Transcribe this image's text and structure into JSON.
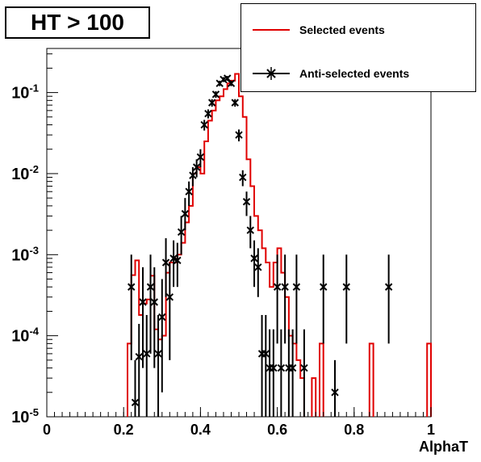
{
  "title": "HT > 100",
  "legend": {
    "selected": "Selected events",
    "anti": "Anti-selected events"
  },
  "colors": {
    "selected": "#e00000",
    "anti": "#000000"
  },
  "chart_data": {
    "type": "line",
    "title": "HT > 100",
    "xlabel": "AlphaT",
    "ylabel": "",
    "xlim": [
      0,
      1
    ],
    "ylim": [
      1e-05,
      0.35
    ],
    "yscale": "log",
    "x_ticks": [
      "0",
      "0.2",
      "0.4",
      "0.6",
      "0.8",
      "1"
    ],
    "y_ticks": [
      {
        "base": "10",
        "exp": "-5"
      },
      {
        "base": "10",
        "exp": "-4"
      },
      {
        "base": "10",
        "exp": "-3"
      },
      {
        "base": "10",
        "exp": "-2"
      },
      {
        "base": "10",
        "exp": "-1"
      }
    ],
    "series": [
      {
        "name": "Selected events",
        "style": "step",
        "bin_width": 0.01,
        "bins": [
          [
            0.21,
            8e-05
          ],
          [
            0.22,
            0.00056
          ],
          [
            0.23,
            0.00085
          ],
          [
            0.24,
            0.00018
          ],
          [
            0.25,
            0.00025
          ],
          [
            0.26,
            0.00028
          ],
          [
            0.27,
            0.00055
          ],
          [
            0.28,
            0.00012
          ],
          [
            0.29,
            9e-05
          ],
          [
            0.3,
            0.0001
          ],
          [
            0.31,
            0.0006
          ],
          [
            0.32,
            0.0008
          ],
          [
            0.33,
            0.0008
          ],
          [
            0.34,
            0.001
          ],
          [
            0.35,
            0.0014
          ],
          [
            0.36,
            0.0025
          ],
          [
            0.37,
            0.004
          ],
          [
            0.38,
            0.01
          ],
          [
            0.39,
            0.012
          ],
          [
            0.4,
            0.01
          ],
          [
            0.41,
            0.025
          ],
          [
            0.42,
            0.045
          ],
          [
            0.43,
            0.06
          ],
          [
            0.44,
            0.08
          ],
          [
            0.45,
            0.09
          ],
          [
            0.46,
            0.11
          ],
          [
            0.47,
            0.13
          ],
          [
            0.48,
            0.14
          ],
          [
            0.49,
            0.17
          ],
          [
            0.5,
            0.09
          ],
          [
            0.51,
            0.05
          ],
          [
            0.52,
            0.015
          ],
          [
            0.53,
            0.007
          ],
          [
            0.54,
            0.003
          ],
          [
            0.55,
            0.002
          ],
          [
            0.56,
            0.0012
          ],
          [
            0.57,
            0.0008
          ],
          [
            0.58,
            0.0004
          ],
          [
            0.59,
            0.0008
          ],
          [
            0.6,
            0.0012
          ],
          [
            0.61,
            0.0006
          ],
          [
            0.62,
            0.0003
          ],
          [
            0.63,
            0.0001
          ],
          [
            0.64,
            8e-05
          ],
          [
            0.65,
            5e-05
          ],
          [
            0.66,
            3e-05
          ],
          [
            0.69,
            3e-05
          ],
          [
            0.71,
            8e-05
          ],
          [
            0.84,
            8e-05
          ],
          [
            0.99,
            8e-05
          ]
        ]
      },
      {
        "name": "Anti-selected events",
        "style": "points",
        "points": [
          [
            0.22,
            0.0004,
            0.001,
            5e-05
          ],
          [
            0.23,
            1.5e-05,
            5e-05,
            1e-05
          ],
          [
            0.24,
            5.5e-05,
            0.00014,
            1e-05
          ],
          [
            0.25,
            0.00026,
            0.0007,
            4e-05
          ],
          [
            0.26,
            6e-05,
            0.00018,
            1e-05
          ],
          [
            0.27,
            0.0004,
            0.001,
            6e-05
          ],
          [
            0.28,
            0.00026,
            0.0007,
            4e-05
          ],
          [
            0.29,
            6e-05,
            0.00018,
            1e-05
          ],
          [
            0.3,
            0.00017,
            0.0005,
            2e-05
          ],
          [
            0.31,
            0.0008,
            0.0016,
            0.0003
          ],
          [
            0.32,
            0.0003,
            0.0008,
            5e-05
          ],
          [
            0.33,
            0.0009,
            0.0015,
            0.0004
          ],
          [
            0.34,
            0.00085,
            0.0014,
            0.0004
          ],
          [
            0.35,
            0.0019,
            0.003,
            0.001
          ],
          [
            0.36,
            0.0032,
            0.005,
            0.002
          ],
          [
            0.37,
            0.006,
            0.008,
            0.004
          ],
          [
            0.38,
            0.0095,
            0.012,
            0.007
          ],
          [
            0.39,
            0.012,
            0.015,
            0.009
          ],
          [
            0.4,
            0.016,
            0.02,
            0.012
          ],
          [
            0.41,
            0.04,
            0.046,
            0.034
          ],
          [
            0.42,
            0.055,
            0.062,
            0.048
          ],
          [
            0.43,
            0.075,
            0.083,
            0.067
          ],
          [
            0.44,
            0.095,
            0.104,
            0.086
          ],
          [
            0.45,
            0.13,
            0.14,
            0.12
          ],
          [
            0.46,
            0.145,
            0.155,
            0.135
          ],
          [
            0.47,
            0.15,
            0.16,
            0.14
          ],
          [
            0.48,
            0.13,
            0.14,
            0.12
          ],
          [
            0.49,
            0.075,
            0.083,
            0.067
          ],
          [
            0.5,
            0.03,
            0.035,
            0.025
          ],
          [
            0.51,
            0.009,
            0.011,
            0.007
          ],
          [
            0.52,
            0.0045,
            0.006,
            0.003
          ],
          [
            0.53,
            0.002,
            0.003,
            0.0012
          ],
          [
            0.54,
            0.0009,
            0.0015,
            0.0004
          ],
          [
            0.55,
            0.0007,
            0.0012,
            0.0003
          ],
          [
            0.56,
            6e-05,
            0.00018,
            1e-05
          ],
          [
            0.57,
            6e-05,
            0.00018,
            1e-05
          ],
          [
            0.58,
            4e-05,
            0.00012,
            1e-05
          ],
          [
            0.59,
            4e-05,
            0.00012,
            1e-05
          ],
          [
            0.6,
            0.0004,
            0.001,
            8e-05
          ],
          [
            0.61,
            4e-05,
            0.00012,
            1e-05
          ],
          [
            0.62,
            0.0004,
            0.001,
            8e-05
          ],
          [
            0.63,
            4e-05,
            0.00012,
            1e-05
          ],
          [
            0.64,
            4e-05,
            0.00012,
            1e-05
          ],
          [
            0.65,
            0.0004,
            0.001,
            8e-05
          ],
          [
            0.67,
            4e-05,
            0.00012,
            1e-05
          ],
          [
            0.72,
            0.0004,
            0.001,
            8e-05
          ],
          [
            0.75,
            2e-05,
            5e-05,
            1e-05
          ],
          [
            0.78,
            0.0004,
            0.001,
            8e-05
          ],
          [
            0.89,
            0.0004,
            0.001,
            8e-05
          ]
        ]
      }
    ]
  }
}
